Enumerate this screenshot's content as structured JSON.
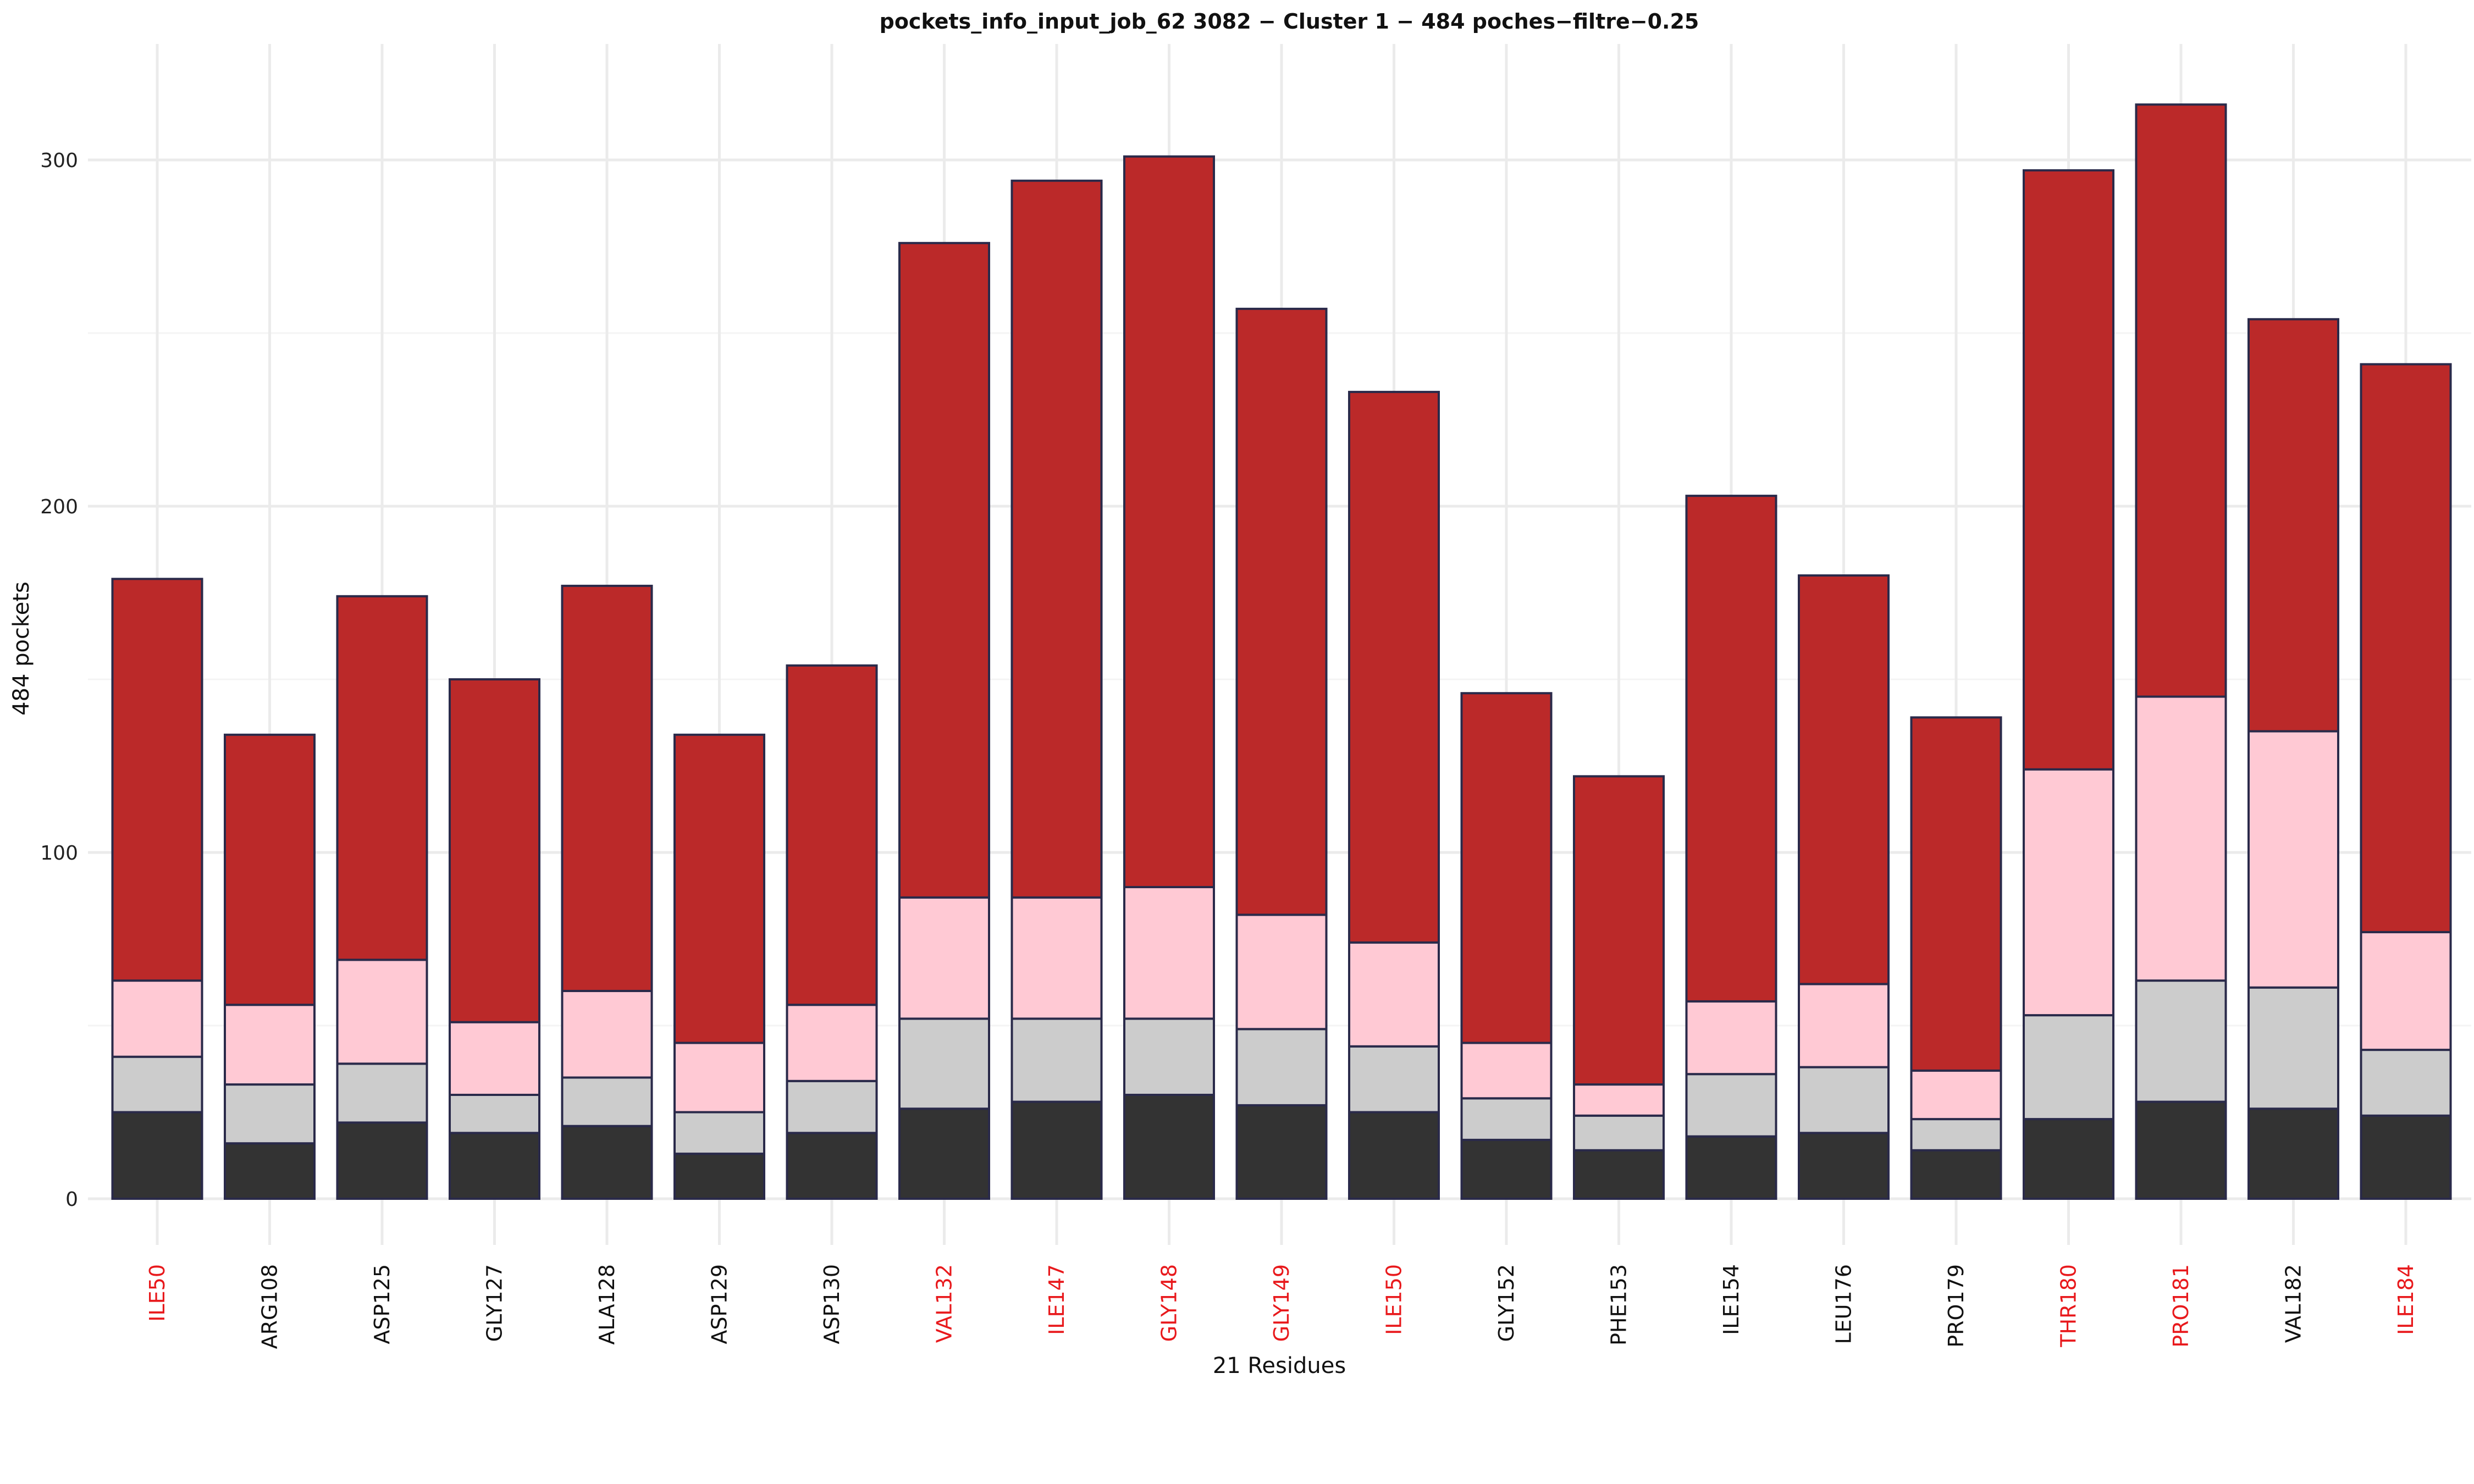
{
  "chart_data": {
    "type": "bar",
    "stacked": true,
    "title": "pockets_info_input_job_62 3082 − Cluster 1 − 484 poches−filtre−0.25",
    "xlabel": "21 Residues",
    "ylabel": "484  pockets",
    "ylim": [
      0,
      330
    ],
    "yticks": [
      0,
      100,
      200,
      300
    ],
    "grid": true,
    "legend": "none",
    "categories": [
      "ILE50",
      "ARG108",
      "ASP125",
      "GLY127",
      "ALA128",
      "ASP129",
      "ASP130",
      "VAL132",
      "ILE147",
      "GLY148",
      "GLY149",
      "ILE150",
      "GLY152",
      "PHE153",
      "ILE154",
      "LEU176",
      "PRO179",
      "THR180",
      "PRO181",
      "VAL182",
      "ILE184"
    ],
    "highlighted_categories": [
      "ILE50",
      "VAL132",
      "ILE147",
      "GLY148",
      "GLY149",
      "ILE150",
      "THR180",
      "PRO181",
      "ILE184"
    ],
    "highlight_color": "#e8191c",
    "label_color": "#111111",
    "series": [
      {
        "color": "#333333",
        "values": [
          25,
          16,
          22,
          19,
          21,
          13,
          19,
          26,
          28,
          30,
          27,
          25,
          17,
          14,
          18,
          19,
          14,
          23,
          28,
          26,
          24
        ]
      },
      {
        "color": "#cccccc",
        "values": [
          16,
          17,
          17,
          11,
          14,
          12,
          15,
          26,
          24,
          22,
          22,
          19,
          12,
          10,
          18,
          19,
          9,
          30,
          35,
          35,
          19
        ]
      },
      {
        "color": "#ffc9d4",
        "values": [
          22,
          23,
          30,
          21,
          25,
          20,
          22,
          35,
          35,
          38,
          33,
          30,
          16,
          9,
          21,
          24,
          14,
          71,
          82,
          74,
          34
        ]
      },
      {
        "color": "#bb2929",
        "values": [
          116,
          78,
          105,
          99,
          117,
          89,
          98,
          189,
          207,
          211,
          175,
          159,
          101,
          89,
          146,
          118,
          102,
          173,
          171,
          119,
          164
        ]
      }
    ]
  }
}
